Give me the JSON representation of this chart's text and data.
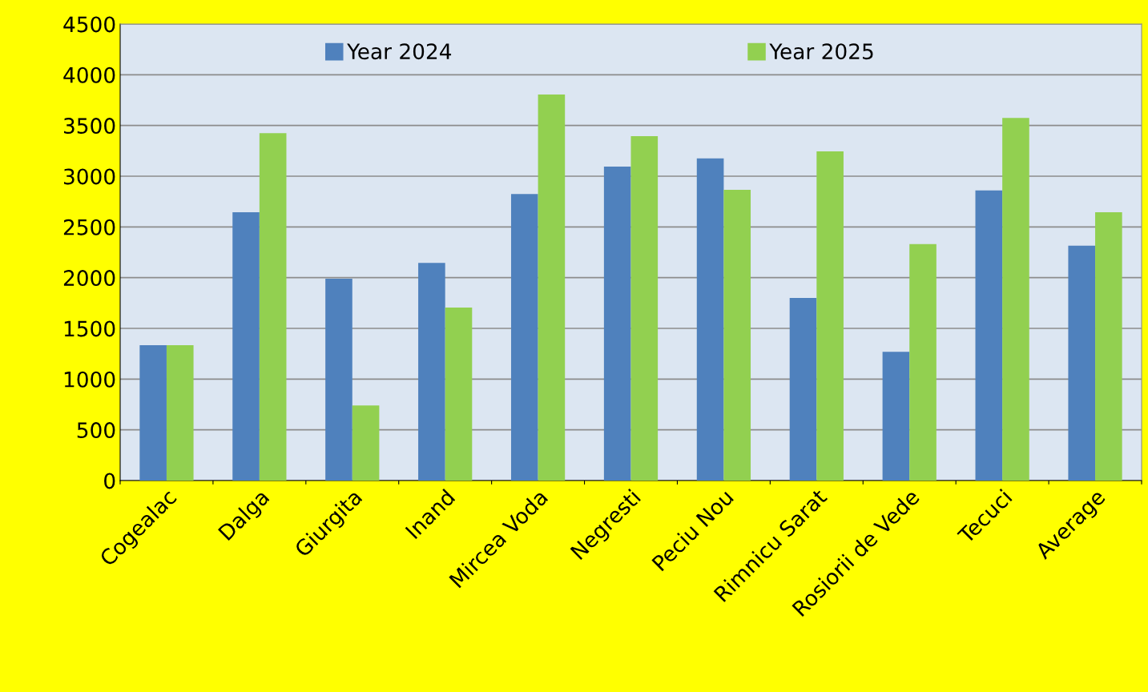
{
  "chart_data": {
    "type": "bar",
    "categories": [
      "Cogealac",
      "Dalga",
      "Giurgita",
      "Inand",
      "Mircea Voda",
      "Negresti",
      "Peciu Nou",
      "Rimnicu Sarat",
      "Rosiorii de Vede",
      "Tecuci",
      "Average"
    ],
    "series": [
      {
        "name": "Year 2024",
        "color": "#4f81bd",
        "values": [
          1335,
          2645,
          1990,
          2145,
          2825,
          3095,
          3175,
          1800,
          1270,
          2860,
          2315
        ]
      },
      {
        "name": "Year 2025",
        "color": "#92d050",
        "values": [
          1335,
          3425,
          740,
          1705,
          3805,
          3395,
          2865,
          3245,
          2330,
          3575,
          2645
        ]
      }
    ],
    "ylim": [
      0,
      4500
    ],
    "yticks": [
      0,
      500,
      1000,
      1500,
      2000,
      2500,
      3000,
      3500,
      4000,
      4500
    ],
    "grid": "y",
    "legend": "top"
  }
}
